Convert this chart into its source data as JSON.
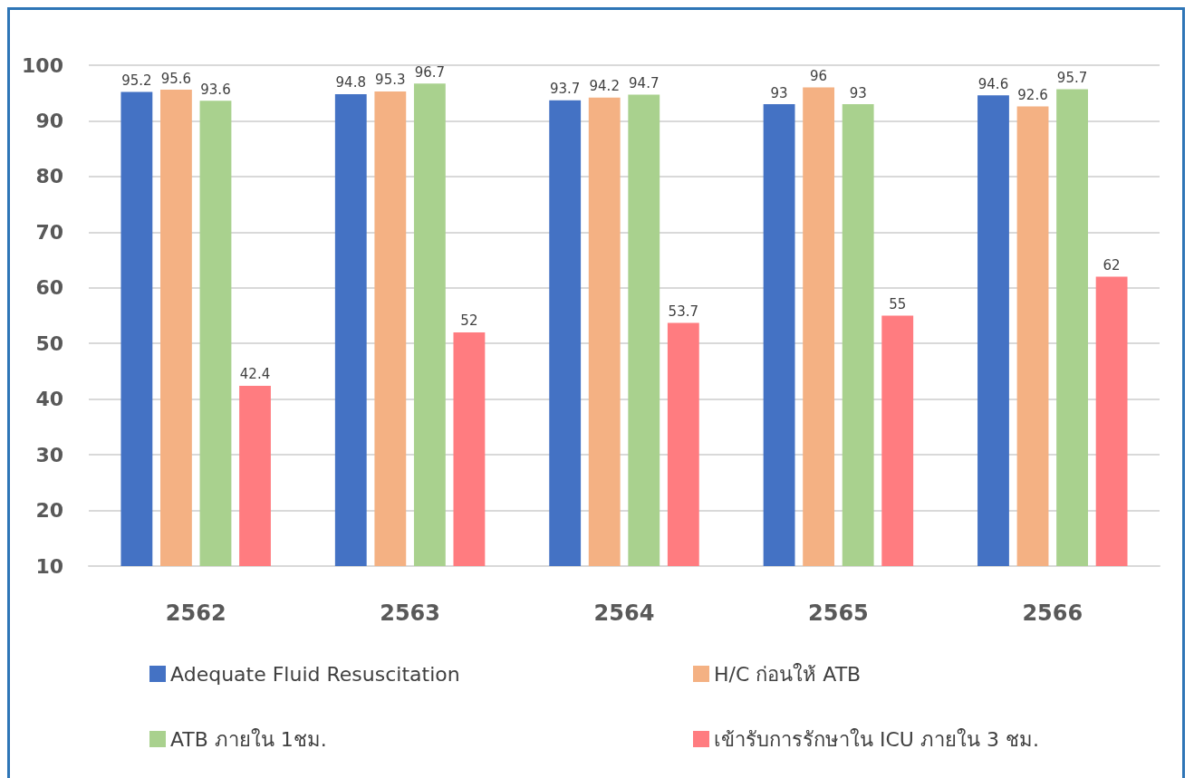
{
  "chart_data": {
    "type": "bar",
    "categories": [
      "2562",
      "2563",
      "2564",
      "2565",
      "2566"
    ],
    "series": [
      {
        "name": "Adequate Fluid Resuscitation",
        "color": "#4472c4",
        "values": [
          95.2,
          94.8,
          93.7,
          93,
          94.6
        ]
      },
      {
        "name": "H/C ก่อนให้ ATB",
        "color": "#f4b183",
        "values": [
          95.6,
          95.3,
          94.2,
          96,
          92.6
        ]
      },
      {
        "name": "ATB ภายใน 1ชม.",
        "color": "#a9d18e",
        "values": [
          93.6,
          96.7,
          94.7,
          93,
          95.7
        ]
      },
      {
        "name": "เข้ารับการรักษาใน ICU ภายใน 3 ชม.",
        "color": "#ff7c80",
        "values": [
          42.4,
          52,
          53.7,
          55,
          62
        ]
      }
    ],
    "ylim": [
      10,
      100
    ],
    "yticks": [
      10,
      20,
      30,
      40,
      50,
      60,
      70,
      80,
      90,
      100
    ],
    "grid": "y",
    "legend": "bottom",
    "data_labels": true
  }
}
